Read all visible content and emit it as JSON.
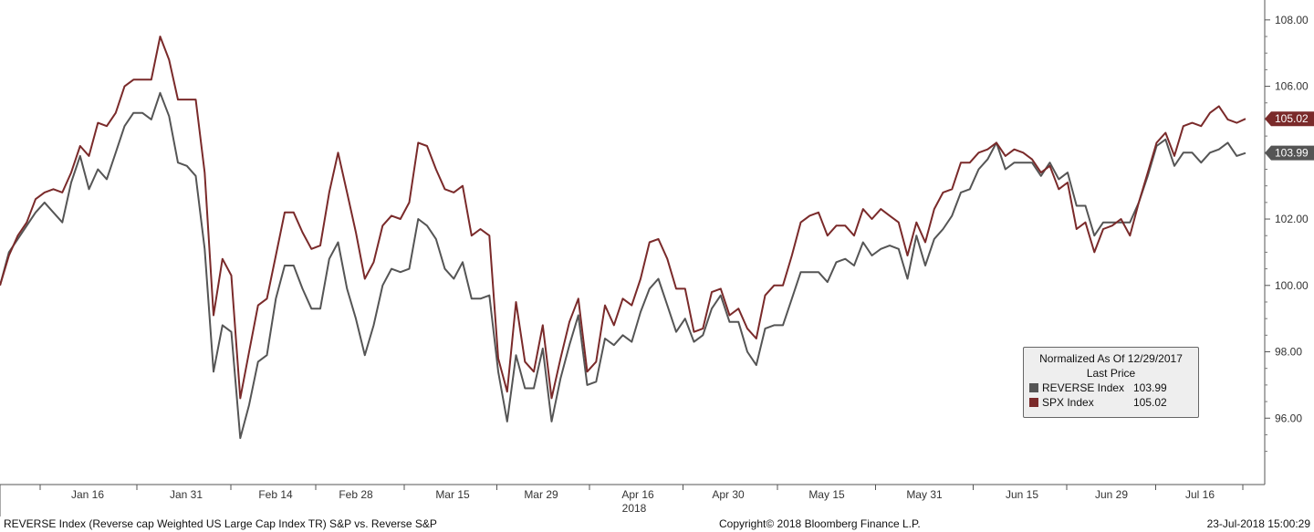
{
  "chart_data": {
    "type": "line",
    "ylim": [
      94.0,
      108.6
    ],
    "y_ticks": [
      "96.00",
      "98.00",
      "100.00",
      "102.00",
      "104.00",
      "106.00",
      "108.00"
    ],
    "x_tick_labels": [
      "Jan 16",
      "Jan 31",
      "Feb 14",
      "Feb 28",
      "Mar 15",
      "Mar 29",
      "Apr 16",
      "Apr 30",
      "May 15",
      "May 31",
      "Jun 15",
      "Jun 29",
      "Jul 16"
    ],
    "x_year_label": "2018",
    "grid": false,
    "legend": {
      "title": "Normalized As Of 12/29/2017",
      "subtitle": "Last Price",
      "placement": "bottom-right"
    },
    "series": [
      {
        "name": "REVERSE Index",
        "last": "103.99",
        "color": "#555555",
        "values": [
          100.0,
          101.0,
          101.4,
          101.8,
          102.2,
          102.5,
          102.2,
          101.9,
          103.1,
          103.9,
          102.9,
          103.5,
          103.2,
          104.0,
          104.8,
          105.2,
          105.2,
          105.0,
          105.8,
          105.1,
          103.7,
          103.6,
          103.3,
          101.1,
          97.4,
          98.8,
          98.6,
          95.4,
          96.4,
          97.7,
          97.9,
          99.6,
          100.6,
          100.6,
          99.9,
          99.3,
          99.3,
          100.8,
          101.3,
          99.9,
          99.0,
          97.9,
          98.8,
          100.0,
          100.5,
          100.4,
          100.5,
          102.0,
          101.8,
          101.4,
          100.5,
          100.2,
          100.7,
          99.6,
          99.6,
          99.7,
          97.4,
          95.9,
          97.9,
          96.9,
          96.9,
          98.1,
          95.9,
          97.2,
          98.2,
          99.1,
          97.0,
          97.1,
          98.4,
          98.2,
          98.5,
          98.3,
          99.2,
          99.9,
          100.2,
          99.4,
          98.6,
          99.0,
          98.3,
          98.5,
          99.3,
          99.7,
          98.9,
          98.9,
          98.0,
          97.6,
          98.7,
          98.8,
          98.8,
          99.6,
          100.4,
          100.4,
          100.4,
          100.1,
          100.7,
          100.8,
          100.6,
          101.3,
          100.9,
          101.1,
          101.2,
          101.1,
          100.2,
          101.5,
          100.6,
          101.4,
          101.7,
          102.1,
          102.8,
          102.9,
          103.5,
          103.8,
          104.3,
          103.5,
          103.7,
          103.7,
          103.7,
          103.3,
          103.7,
          103.2,
          103.4,
          102.4,
          102.4,
          101.5,
          101.9,
          101.9,
          101.9,
          101.9,
          102.5,
          103.3,
          104.2,
          104.4,
          103.6,
          104.0,
          104.0,
          103.7,
          104.0,
          104.1,
          104.3,
          103.9,
          103.99
        ]
      },
      {
        "name": "SPX Index",
        "last": "105.02",
        "color": "#7a2a2a",
        "values": [
          100.0,
          100.9,
          101.5,
          101.9,
          102.6,
          102.8,
          102.9,
          102.8,
          103.4,
          104.2,
          103.9,
          104.9,
          104.8,
          105.2,
          106.0,
          106.2,
          106.2,
          106.2,
          107.5,
          106.8,
          105.6,
          105.6,
          105.6,
          103.4,
          99.1,
          100.8,
          100.3,
          96.6,
          98.0,
          99.4,
          99.6,
          100.9,
          102.2,
          102.2,
          101.6,
          101.1,
          101.2,
          102.8,
          104.0,
          102.8,
          101.6,
          100.2,
          100.7,
          101.8,
          102.1,
          102.0,
          102.5,
          104.3,
          104.2,
          103.5,
          102.9,
          102.8,
          103.0,
          101.5,
          101.7,
          101.5,
          97.8,
          96.8,
          99.5,
          97.7,
          97.4,
          98.8,
          96.6,
          97.8,
          98.9,
          99.6,
          97.4,
          97.7,
          99.4,
          98.8,
          99.6,
          99.4,
          100.2,
          101.3,
          101.4,
          100.8,
          99.9,
          99.9,
          98.6,
          98.7,
          99.8,
          99.9,
          99.1,
          99.3,
          98.7,
          98.4,
          99.7,
          100.0,
          100.0,
          100.9,
          101.9,
          102.1,
          102.2,
          101.5,
          101.8,
          101.8,
          101.5,
          102.3,
          102.0,
          102.3,
          102.1,
          101.9,
          100.9,
          101.9,
          101.3,
          102.3,
          102.8,
          102.9,
          103.7,
          103.7,
          104.0,
          104.1,
          104.3,
          103.9,
          104.1,
          104.0,
          103.8,
          103.4,
          103.6,
          102.9,
          103.1,
          101.7,
          101.9,
          101.0,
          101.7,
          101.8,
          102.0,
          101.5,
          102.5,
          103.4,
          104.3,
          104.6,
          103.9,
          104.8,
          104.9,
          104.8,
          105.2,
          105.4,
          105.0,
          104.9,
          105.02
        ]
      }
    ]
  },
  "footer": {
    "left": "REVERSE Index (Reverse cap Weighted US Large Cap Index TR) S&P vs. Reverse S&P",
    "center": "Copyright© 2018 Bloomberg Finance L.P.",
    "right": "23-Jul-2018 15:00:29"
  }
}
